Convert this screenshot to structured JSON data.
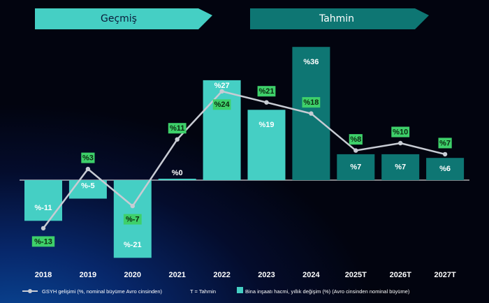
{
  "banners": {
    "history": "Geçmiş",
    "forecast": "Tahmin"
  },
  "chart_data": {
    "type": "bar",
    "categories": [
      "2018",
      "2019",
      "2020",
      "2021",
      "2022",
      "2023",
      "2024",
      "2025T",
      "2026T",
      "2027T"
    ],
    "series": [
      {
        "name": "Bina inşaatı hacmi, yıllık değişim (%) (Avro cinsinden nominal büyüme)",
        "type": "bar",
        "values": [
          -11,
          -5,
          -21,
          0,
          27,
          19,
          36,
          7,
          7,
          6
        ],
        "labels": [
          "%-11",
          "%-5",
          "%-21",
          "%0",
          "%27",
          "%19",
          "%36",
          "%7",
          "%7",
          "%6"
        ]
      },
      {
        "name": "GSYH gelişimi (%, nominal büyüme Avro cinsinden)",
        "type": "line",
        "values": [
          -13,
          3,
          -7,
          11,
          24,
          21,
          18,
          8,
          10,
          7
        ],
        "labels": [
          "%-13",
          "%3",
          "%-7",
          "%11",
          "%24",
          "%21",
          "%18",
          "%8",
          "%10",
          "%7"
        ]
      }
    ],
    "forecast_start_index": 6,
    "ylim": [
      -21,
      36
    ],
    "legend_position": "bottom",
    "legend_note": "T = Tahmin",
    "colors": {
      "bar_history": "#45cfc4",
      "bar_forecast": "#0e7673",
      "line": "#c8ccd4",
      "line_label_bg": "#3ed06a",
      "banner_history": "#45cfc4",
      "banner_forecast": "#0e7673"
    }
  }
}
